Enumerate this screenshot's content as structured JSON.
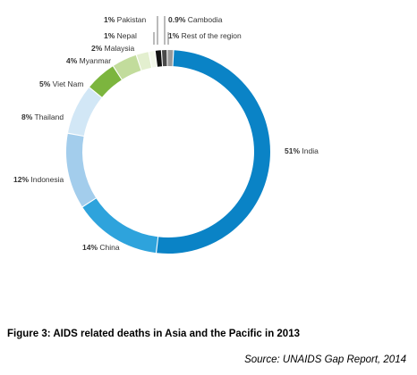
{
  "chart_data": {
    "type": "pie",
    "variant": "donut",
    "categories": [
      "India",
      "China",
      "Indonesia",
      "Thailand",
      "Viet Nam",
      "Myanmar",
      "Malaysia",
      "Nepal",
      "Pakistan",
      "Cambodia",
      "Rest of the region"
    ],
    "values": [
      51,
      14,
      12,
      8,
      5,
      4,
      2,
      1,
      1,
      0.9,
      1
    ],
    "labels": [
      "51% India",
      "14% China",
      "12% Indonesia",
      "8% Thailand",
      "5% Viet Nam",
      "4% Myanmar",
      "2% Malaysia",
      "1% Nepal",
      "1% Pakistan",
      "0.9% Cambodia",
      "1% Rest of the region"
    ],
    "percent_labels": [
      "51%",
      "14%",
      "12%",
      "8%",
      "5%",
      "4%",
      "2%",
      "1%",
      "1%",
      "0.9%",
      "1%"
    ],
    "colors": [
      "#0a83c6",
      "#2ea3dc",
      "#a3cdec",
      "#d2e7f6",
      "#7cb53e",
      "#c2dc9c",
      "#e3efcf",
      "#f2f7ea",
      "#111111",
      "#4a4a4a",
      "#9a9a9a"
    ]
  },
  "caption": {
    "figure_title": "Figure 3: AIDS related deaths in Asia and the Pacific  in 2013",
    "source": "Source: UNAIDS Gap Report, 2014"
  }
}
